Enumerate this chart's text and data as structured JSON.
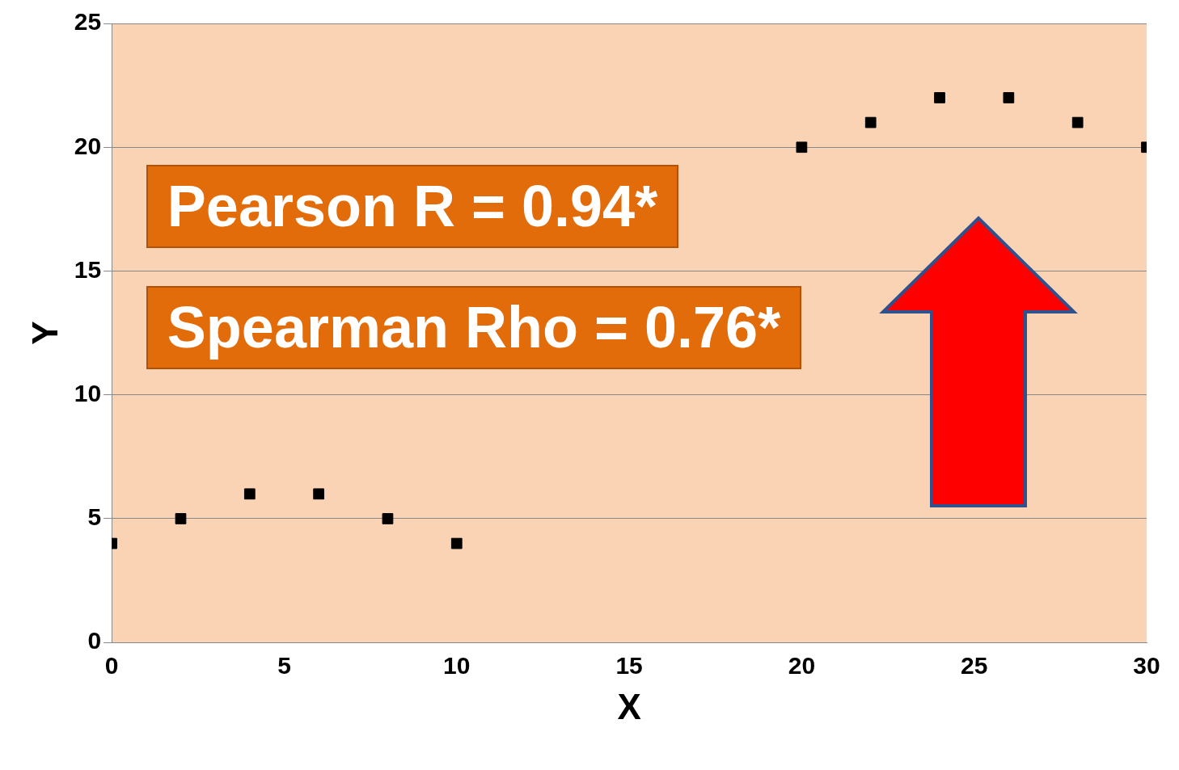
{
  "chart_data": {
    "type": "scatter",
    "xlabel": "X",
    "ylabel": "Y",
    "x": [
      0,
      2,
      4,
      6,
      8,
      10,
      20,
      22,
      24,
      26,
      28,
      30
    ],
    "series": [
      {
        "color": "#000000",
        "values": [
          4,
          5,
          6,
          6,
          5,
          4,
          20,
          21,
          22,
          22,
          21,
          20
        ]
      }
    ],
    "xlim": [
      0,
      30
    ],
    "xticks": [
      0,
      5,
      10,
      15,
      20,
      25,
      30
    ],
    "ylim": [
      0,
      25
    ],
    "yticks": [
      0,
      5,
      10,
      15,
      20,
      25
    ],
    "grid": "y",
    "legend": false,
    "marker": "square",
    "annotations": [
      "Pearson R = 0.94*",
      "Spearman Rho = 0.76*"
    ]
  }
}
